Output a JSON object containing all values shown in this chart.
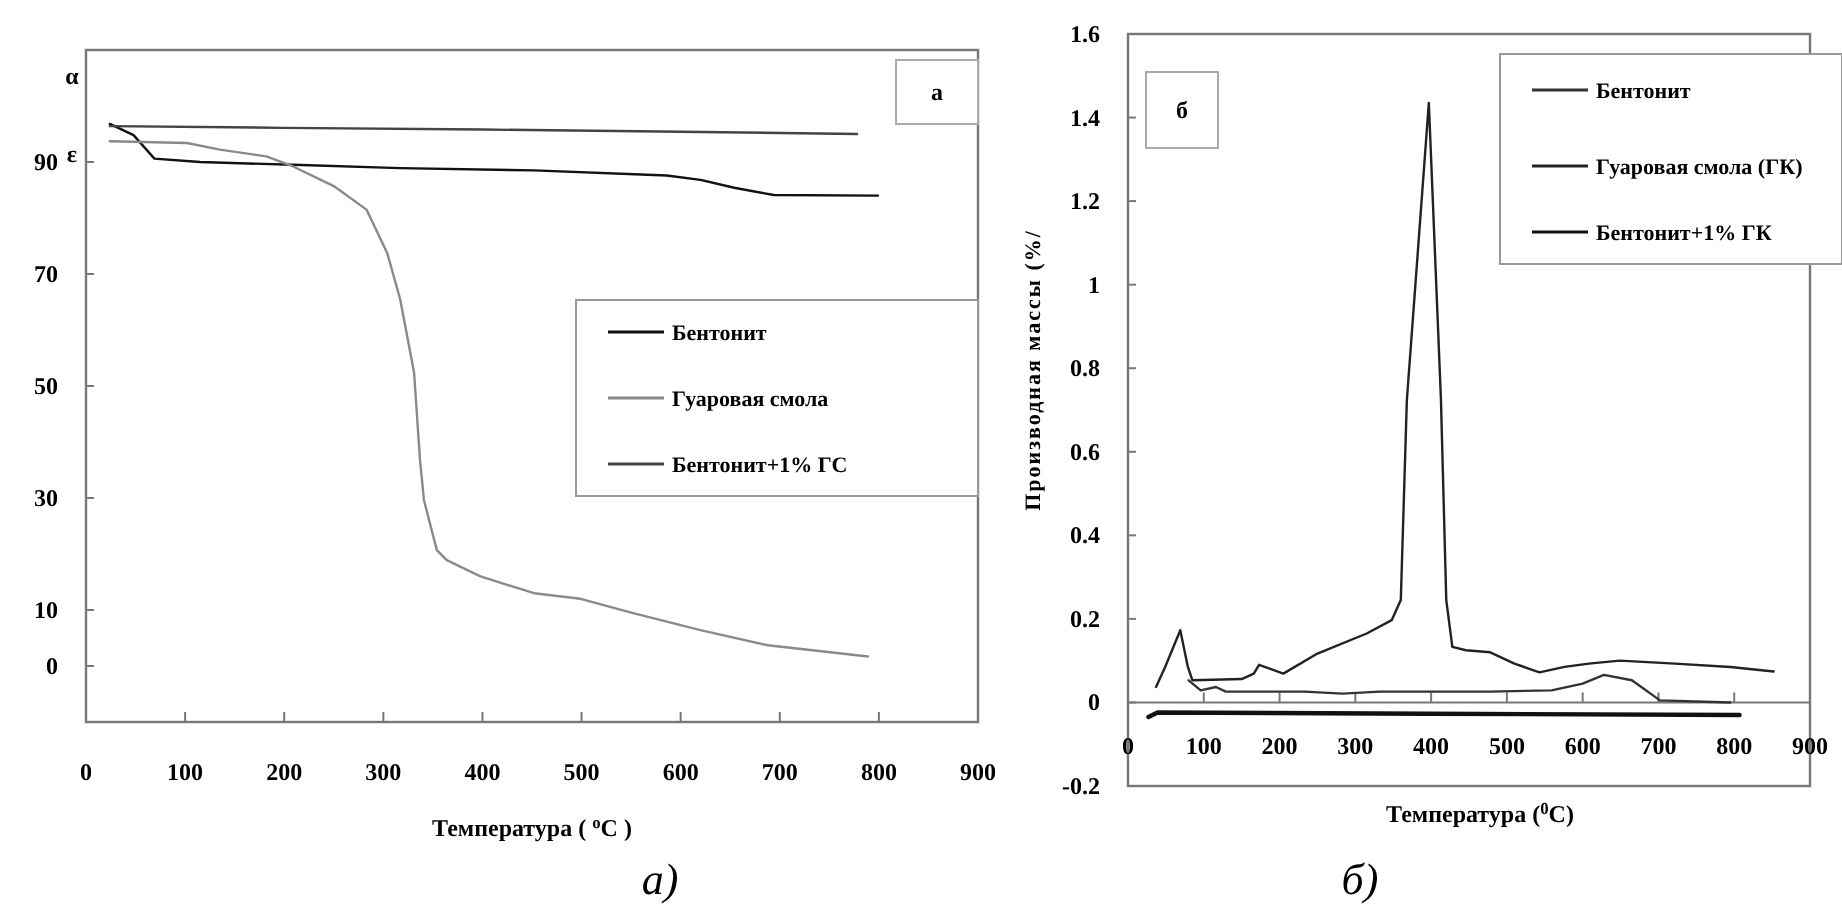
{
  "chart_data": [
    {
      "type": "line",
      "xlabel": "Температура ( $^{o}$C )",
      "xlim": [
        0,
        900
      ],
      "xticks": [
        0,
        100,
        200,
        300,
        400,
        500,
        600,
        700,
        800,
        900
      ],
      "ylim": [
        -10,
        110
      ],
      "yticks": [
        0,
        10,
        30,
        50,
        70,
        90
      ],
      "grid": false,
      "legend": "right",
      "annotations": [
        "α",
        "ε",
        "а",
        "а)"
      ],
      "series": [
        {
          "name": "Бентонит",
          "color": "#111111",
          "x": [
            24,
            48,
            69,
            115,
            209,
            317,
            452,
            586,
            620,
            654,
            694,
            799
          ],
          "values": [
            96.8,
            94.8,
            90.6,
            90.0,
            89.5,
            88.9,
            88.5,
            87.6,
            86.8,
            85.4,
            84.1,
            84.0
          ]
        },
        {
          "name": "Гуаровая смола",
          "color": "#8a8a8a",
          "x": [
            24,
            102,
            135,
            182,
            209,
            250,
            283,
            304,
            317,
            331,
            337,
            341,
            354,
            364,
            398,
            452,
            499,
            553,
            620,
            688,
            789
          ],
          "values": [
            93.7,
            93.4,
            92.2,
            91.0,
            89.2,
            85.7,
            81.5,
            73.7,
            65.5,
            52.4,
            36.8,
            29.6,
            20.7,
            18.9,
            16.0,
            13.0,
            12.0,
            9.4,
            6.4,
            3.7,
            1.7
          ]
        },
        {
          "name": "Бентонит+1% ГС",
          "color": "#444444",
          "x": [
            24,
            200,
            400,
            600,
            778
          ],
          "values": [
            96.4,
            96.1,
            95.8,
            95.4,
            95.0
          ]
        }
      ]
    },
    {
      "type": "line",
      "xlabel": "Температура ($^{0}$C)",
      "ylabel": "Производная массы (%/",
      "xlim": [
        0,
        900
      ],
      "xticks": [
        0,
        100,
        200,
        300,
        400,
        500,
        600,
        700,
        800,
        900
      ],
      "ylim": [
        -0.2,
        1.6
      ],
      "yticks": [
        -0.2,
        0,
        0.2,
        0.4,
        0.6,
        0.8,
        1,
        1.2,
        1.4,
        1.6
      ],
      "grid": false,
      "legend": "top right",
      "annotations": [
        "б",
        "б)"
      ],
      "ref_lines": [
        {
          "axis": "y",
          "value": 0
        }
      ],
      "series": [
        {
          "name": "Бентонит",
          "color": "#333333",
          "x": [
            80,
            96,
            116,
            129,
            233,
            283,
            332,
            478,
            559,
            600,
            628,
            665,
            702,
            795
          ],
          "values": [
            0.053,
            0.029,
            0.037,
            0.026,
            0.026,
            0.021,
            0.026,
            0.026,
            0.029,
            0.045,
            0.066,
            0.053,
            0.005,
            0.0
          ]
        },
        {
          "name": "Гуаровая смола (ГК)",
          "color": "#222222",
          "x": [
            37,
            49,
            69,
            79,
            85,
            150,
            166,
            173,
            205,
            250,
            315,
            348,
            360,
            368,
            397,
            413,
            420,
            428,
            446,
            478,
            510,
            543,
            576,
            608,
            649,
            722,
            795,
            852
          ],
          "values": [
            0.037,
            0.085,
            0.173,
            0.085,
            0.053,
            0.056,
            0.069,
            0.09,
            0.069,
            0.117,
            0.165,
            0.197,
            0.245,
            0.724,
            1.435,
            0.724,
            0.245,
            0.133,
            0.125,
            0.12,
            0.093,
            0.072,
            0.085,
            0.093,
            0.1,
            0.093,
            0.085,
            0.074
          ]
        },
        {
          "name": "Бентонит+1% ГК",
          "color": "#111111",
          "x": [
            27,
            39,
            396,
            807
          ],
          "values": [
            -0.035,
            -0.024,
            -0.027,
            -0.03
          ]
        }
      ]
    }
  ]
}
